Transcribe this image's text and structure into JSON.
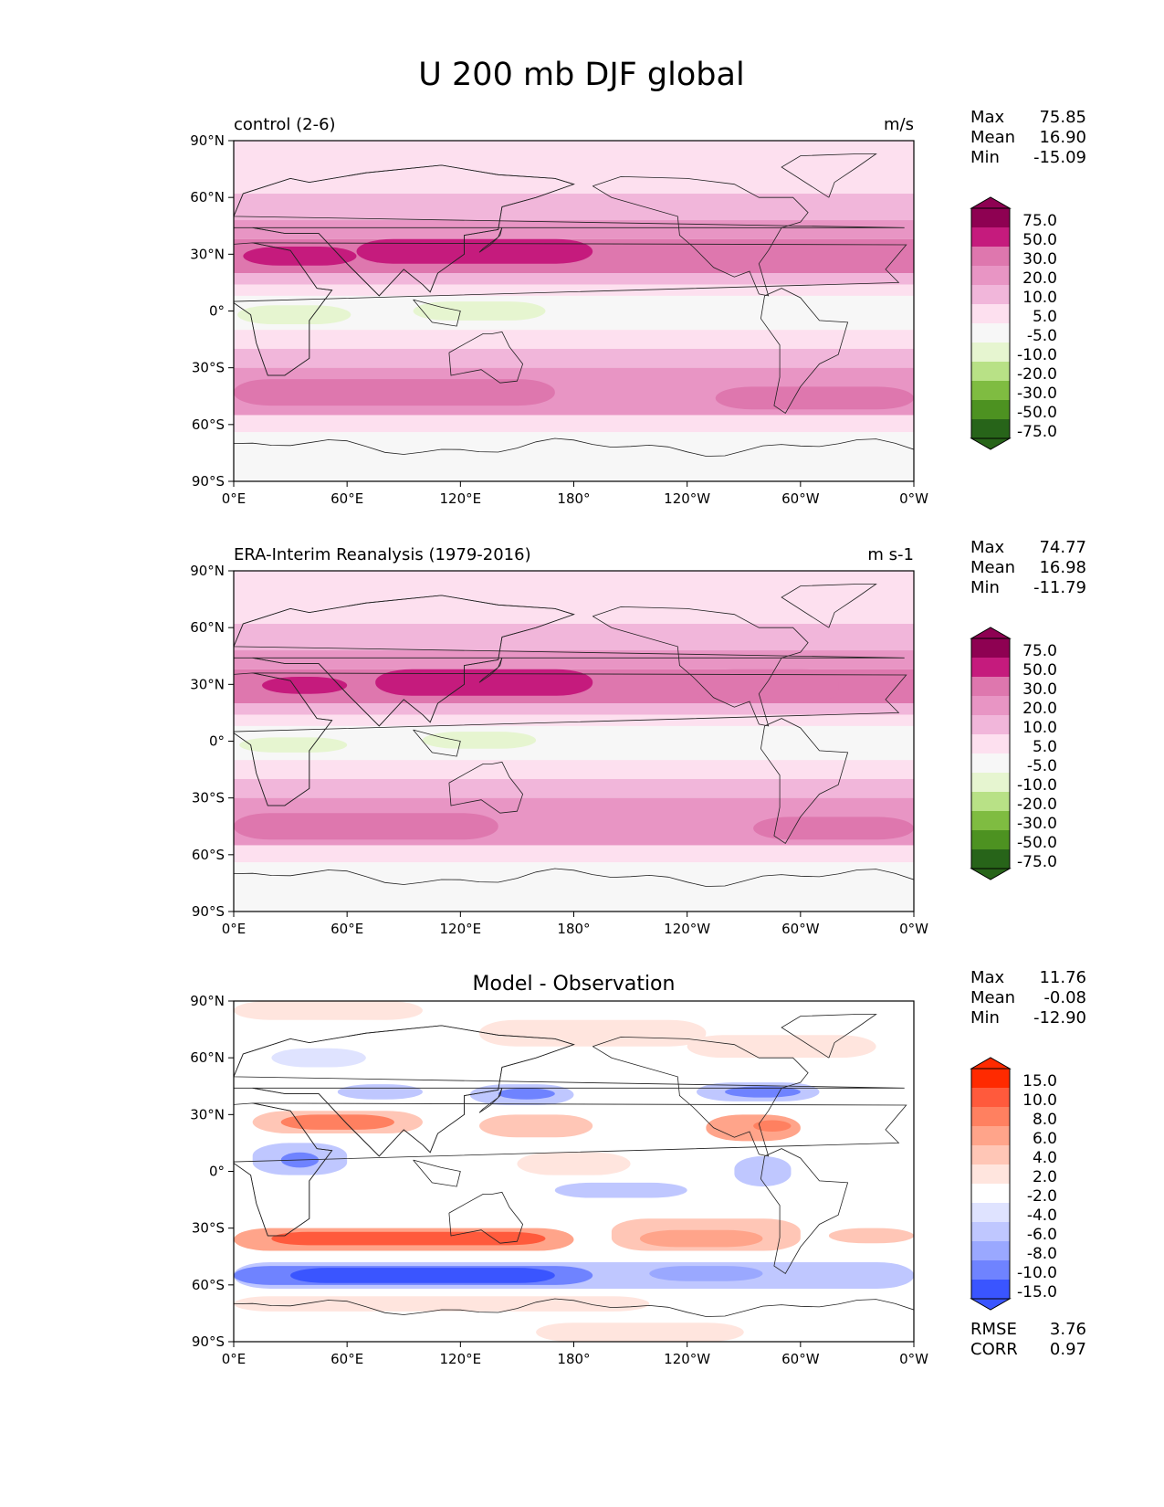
{
  "figure": {
    "title": "U 200 mb DJF global"
  },
  "chart_data": [
    {
      "type": "contour-map",
      "title_left": "control (2-6)",
      "title_center": "",
      "title_right": "m/s",
      "stats": [
        {
          "label": "Max",
          "value": "75.85"
        },
        {
          "label": "Mean",
          "value": "16.90"
        },
        {
          "label": "Min",
          "value": "-15.09"
        }
      ],
      "extra_stats": [],
      "x_ticks": [
        "0°E",
        "60°E",
        "120°E",
        "180°",
        "120°W",
        "60°W",
        "0°W"
      ],
      "y_ticks": [
        "90°N",
        "60°N",
        "30°N",
        "0°",
        "30°S",
        "60°S",
        "90°S"
      ],
      "xlim": [
        0,
        360
      ],
      "ylim": [
        -90,
        90
      ],
      "colorbar": {
        "labels": [
          "75.0",
          "50.0",
          "30.0",
          "20.0",
          "10.0",
          "5.0",
          "-5.0",
          "-10.0",
          "-20.0",
          "-30.0",
          "-50.0",
          "-75.0"
        ],
        "colors": [
          "#8e0152",
          "#c51b7d",
          "#de77ae",
          "#e895c4",
          "#f1b6da",
          "#fde0ef",
          "#f7f7f7",
          "#e6f5d0",
          "#b8e186",
          "#7fbc41",
          "#4d9221",
          "#276419"
        ]
      },
      "bands": [
        {
          "lat": [
            62,
            90
          ],
          "level": 5
        },
        {
          "lat": [
            48,
            62
          ],
          "level": 4
        },
        {
          "lat": [
            38,
            48
          ],
          "level": 3
        },
        {
          "lat": [
            20,
            38
          ],
          "level": 2
        },
        {
          "lat": [
            24,
            34
          ],
          "lon": [
            5,
            65
          ],
          "level": 1
        },
        {
          "lat": [
            25,
            38
          ],
          "lon": [
            65,
            190
          ],
          "level": 1
        },
        {
          "lat": [
            14,
            20
          ],
          "level": 4
        },
        {
          "lat": [
            8,
            14
          ],
          "level": 5
        },
        {
          "lat": [
            -10,
            8
          ],
          "level": 6
        },
        {
          "lat": [
            -7,
            3
          ],
          "lon": [
            2,
            62
          ],
          "level": 7
        },
        {
          "lat": [
            -5,
            5
          ],
          "lon": [
            95,
            165
          ],
          "level": 7
        },
        {
          "lat": [
            -20,
            -10
          ],
          "level": 5
        },
        {
          "lat": [
            -30,
            -20
          ],
          "level": 4
        },
        {
          "lat": [
            -55,
            -30
          ],
          "level": 3
        },
        {
          "lat": [
            -50,
            -36
          ],
          "lon": [
            0,
            170
          ],
          "level": 2
        },
        {
          "lat": [
            -52,
            -40
          ],
          "lon": [
            255,
            360
          ],
          "level": 2
        },
        {
          "lat": [
            -64,
            -55
          ],
          "level": 5
        },
        {
          "lat": [
            -90,
            -64
          ],
          "level": 6
        }
      ]
    },
    {
      "type": "contour-map",
      "title_left": "ERA-Interim Reanalysis (1979-2016)",
      "title_center": "",
      "title_right": "m s-1",
      "stats": [
        {
          "label": "Max",
          "value": "74.77"
        },
        {
          "label": "Mean",
          "value": "16.98"
        },
        {
          "label": "Min",
          "value": "-11.79"
        }
      ],
      "extra_stats": [],
      "x_ticks": [
        "0°E",
        "60°E",
        "120°E",
        "180°",
        "120°W",
        "60°W",
        "0°W"
      ],
      "y_ticks": [
        "90°N",
        "60°N",
        "30°N",
        "0°",
        "30°S",
        "60°S",
        "90°S"
      ],
      "xlim": [
        0,
        360
      ],
      "ylim": [
        -90,
        90
      ],
      "colorbar": {
        "labels": [
          "75.0",
          "50.0",
          "30.0",
          "20.0",
          "10.0",
          "5.0",
          "-5.0",
          "-10.0",
          "-20.0",
          "-30.0",
          "-50.0",
          "-75.0"
        ],
        "colors": [
          "#8e0152",
          "#c51b7d",
          "#de77ae",
          "#e895c4",
          "#f1b6da",
          "#fde0ef",
          "#f7f7f7",
          "#e6f5d0",
          "#b8e186",
          "#7fbc41",
          "#4d9221",
          "#276419"
        ]
      },
      "bands": [
        {
          "lat": [
            62,
            90
          ],
          "level": 5
        },
        {
          "lat": [
            48,
            62
          ],
          "level": 4
        },
        {
          "lat": [
            38,
            48
          ],
          "level": 3
        },
        {
          "lat": [
            20,
            38
          ],
          "level": 2
        },
        {
          "lat": [
            25,
            34
          ],
          "lon": [
            15,
            60
          ],
          "level": 1
        },
        {
          "lat": [
            24,
            38
          ],
          "lon": [
            75,
            190
          ],
          "level": 1
        },
        {
          "lat": [
            20,
            38
          ],
          "lon": [
            245,
            320
          ],
          "level": 2
        },
        {
          "lat": [
            14,
            20
          ],
          "level": 4
        },
        {
          "lat": [
            8,
            14
          ],
          "level": 5
        },
        {
          "lat": [
            -10,
            8
          ],
          "level": 6
        },
        {
          "lat": [
            -6,
            2
          ],
          "lon": [
            3,
            60
          ],
          "level": 7
        },
        {
          "lat": [
            -4,
            5
          ],
          "lon": [
            100,
            160
          ],
          "level": 7
        },
        {
          "lat": [
            -20,
            -10
          ],
          "level": 5
        },
        {
          "lat": [
            -30,
            -20
          ],
          "level": 4
        },
        {
          "lat": [
            -55,
            -30
          ],
          "level": 3
        },
        {
          "lat": [
            -52,
            -38
          ],
          "lon": [
            0,
            140
          ],
          "level": 2
        },
        {
          "lat": [
            -52,
            -40
          ],
          "lon": [
            275,
            360
          ],
          "level": 2
        },
        {
          "lat": [
            -64,
            -55
          ],
          "level": 5
        },
        {
          "lat": [
            -90,
            -64
          ],
          "level": 6
        }
      ]
    },
    {
      "type": "contour-map",
      "title_left": "",
      "title_center": "Model - Observation",
      "title_right": "",
      "stats": [
        {
          "label": "Max",
          "value": "11.76"
        },
        {
          "label": "Mean",
          "value": "-0.08"
        },
        {
          "label": "Min",
          "value": "-12.90"
        }
      ],
      "extra_stats": [
        {
          "label": "RMSE",
          "value": "3.76"
        },
        {
          "label": "CORR",
          "value": "0.97"
        }
      ],
      "x_ticks": [
        "0°E",
        "60°E",
        "120°E",
        "180°",
        "120°W",
        "60°W",
        "0°W"
      ],
      "y_ticks": [
        "90°N",
        "60°N",
        "30°N",
        "0°",
        "30°S",
        "60°S",
        "90°S"
      ],
      "xlim": [
        0,
        360
      ],
      "ylim": [
        -90,
        90
      ],
      "colorbar": {
        "labels": [
          "15.0",
          "10.0",
          "8.0",
          "6.0",
          "4.0",
          "2.0",
          "-2.0",
          "-4.0",
          "-6.0",
          "-8.0",
          "-10.0",
          "-15.0"
        ],
        "colors": [
          "#ff2a00",
          "#ff5a3c",
          "#ff8060",
          "#ffa48a",
          "#ffc6b6",
          "#ffe5de",
          "#ffffff",
          "#dfe3ff",
          "#bfc7ff",
          "#9aa8ff",
          "#6f83ff",
          "#3a55ff"
        ]
      },
      "bands": [
        {
          "lat": [
            80,
            90
          ],
          "lon": [
            0,
            100
          ],
          "level": 5
        },
        {
          "lat": [
            66,
            80
          ],
          "lon": [
            130,
            250
          ],
          "level": 5
        },
        {
          "lat": [
            60,
            72
          ],
          "lon": [
            240,
            340
          ],
          "level": 5
        },
        {
          "lat": [
            55,
            65
          ],
          "lon": [
            20,
            70
          ],
          "level": 7
        },
        {
          "lat": [
            38,
            46
          ],
          "lon": [
            55,
            100
          ],
          "level": 8
        },
        {
          "lat": [
            35,
            46
          ],
          "lon": [
            125,
            180
          ],
          "level": 8
        },
        {
          "lat": [
            38,
            44
          ],
          "lon": [
            140,
            170
          ],
          "level": 10
        },
        {
          "lat": [
            37,
            47
          ],
          "lon": [
            245,
            310
          ],
          "level": 8
        },
        {
          "lat": [
            39,
            45
          ],
          "lon": [
            260,
            300
          ],
          "level": 10
        },
        {
          "lat": [
            20,
            32
          ],
          "lon": [
            10,
            100
          ],
          "level": 4
        },
        {
          "lat": [
            22,
            30
          ],
          "lon": [
            25,
            85
          ],
          "level": 2
        },
        {
          "lat": [
            18,
            30
          ],
          "lon": [
            130,
            190
          ],
          "level": 4
        },
        {
          "lat": [
            16,
            30
          ],
          "lon": [
            250,
            300
          ],
          "level": 3
        },
        {
          "lat": [
            21,
            27
          ],
          "lon": [
            275,
            295
          ],
          "level": 2
        },
        {
          "lat": [
            -2,
            15
          ],
          "lon": [
            10,
            60
          ],
          "level": 8
        },
        {
          "lat": [
            2,
            10
          ],
          "lon": [
            25,
            45
          ],
          "level": 10
        },
        {
          "lat": [
            -8,
            8
          ],
          "lon": [
            265,
            295
          ],
          "level": 8
        },
        {
          "lat": [
            -14,
            -6
          ],
          "lon": [
            170,
            240
          ],
          "level": 8
        },
        {
          "lat": [
            -2,
            10
          ],
          "lon": [
            150,
            210
          ],
          "level": 5
        },
        {
          "lat": [
            -42,
            -30
          ],
          "lon": [
            0,
            180
          ],
          "level": 3
        },
        {
          "lat": [
            -39,
            -32
          ],
          "lon": [
            20,
            165
          ],
          "level": 1
        },
        {
          "lat": [
            -42,
            -25
          ],
          "lon": [
            200,
            300
          ],
          "level": 4
        },
        {
          "lat": [
            -40,
            -31
          ],
          "lon": [
            215,
            280
          ],
          "level": 3
        },
        {
          "lat": [
            -38,
            -30
          ],
          "lon": [
            315,
            360
          ],
          "level": 4
        },
        {
          "lat": [
            -62,
            -48
          ],
          "lon": [
            0,
            360
          ],
          "level": 8
        },
        {
          "lat": [
            -60,
            -50
          ],
          "lon": [
            0,
            190
          ],
          "level": 10
        },
        {
          "lat": [
            -59,
            -51
          ],
          "lon": [
            30,
            170
          ],
          "level": 11
        },
        {
          "lat": [
            -58,
            -50
          ],
          "lon": [
            220,
            280
          ],
          "level": 9
        },
        {
          "lat": [
            -74,
            -66
          ],
          "lon": [
            0,
            220
          ],
          "level": 5
        },
        {
          "lat": [
            -90,
            -80
          ],
          "lon": [
            160,
            270
          ],
          "level": 5
        }
      ]
    }
  ]
}
